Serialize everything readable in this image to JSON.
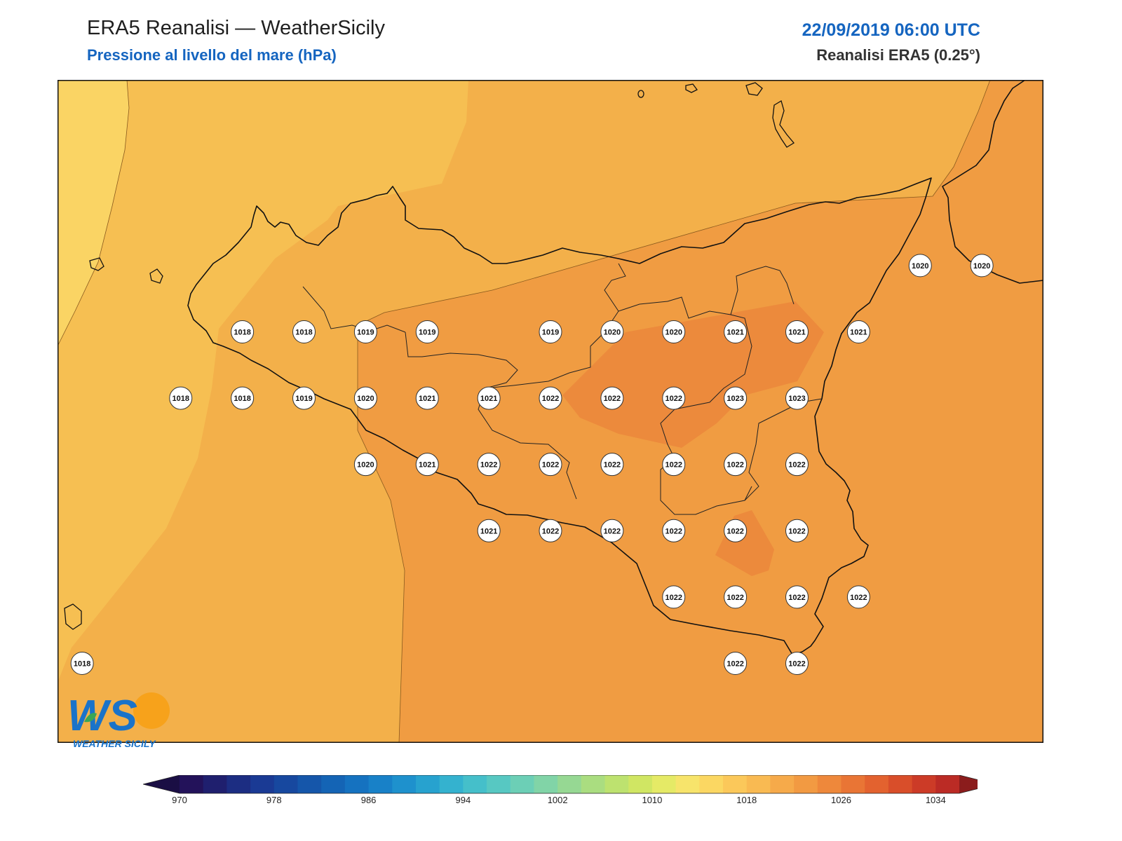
{
  "header": {
    "title": "ERA5 Reanalisi — WeatherSicily",
    "subtitle": "Pressione al livello del mare (hPa)",
    "datetime": "22/09/2019 06:00 UTC",
    "source": "Reanalisi ERA5 (0.25°)"
  },
  "logo": {
    "letters": "WS",
    "brand": "WEATHER SICILY",
    "colors": {
      "primary": "#1a73c9",
      "secondary": "#f7a21b",
      "leaf": "#3aa655"
    }
  },
  "colors": {
    "coast": "#111111",
    "border": "#222222",
    "marker_fill": "#ffffff",
    "marker_stroke": "#333333"
  },
  "colorbar": {
    "tick_labels": [
      "970",
      "978",
      "986",
      "994",
      "1002",
      "1010",
      "1018",
      "1026",
      "1034"
    ],
    "levels_min": 970,
    "levels_max": 1034,
    "step": 2,
    "colors": [
      "#23125a",
      "#1f1f6e",
      "#1c2d82",
      "#1a3a94",
      "#17489f",
      "#1556aa",
      "#1464b5",
      "#1572c0",
      "#1881c8",
      "#1e91cd",
      "#27a2cf",
      "#34b2cf",
      "#45bfca",
      "#57c8c2",
      "#6ccfb6",
      "#81d4a7",
      "#96d893",
      "#aadd80",
      "#bde26f",
      "#d0e663",
      "#e5ea66",
      "#f7e46b",
      "#fbd762",
      "#fbc85a",
      "#f9ba52",
      "#f6aa4a",
      "#f29a42",
      "#ee883b",
      "#e97535",
      "#e3622f",
      "#d94e2a",
      "#cc3b27",
      "#bb2b25"
    ],
    "under_color": "#1a0e44",
    "over_color": "#8b1c1c"
  },
  "chart_data": {
    "type": "heatmap",
    "variable": "Pressione al livello del mare (hPa)",
    "valid_time": "22/09/2019 06:00 UTC",
    "extent": {
      "lon": [
        12.0,
        16.0
      ],
      "lat": [
        36.45,
        38.95
      ]
    },
    "labelled_values": [
      {
        "lon": 15.5,
        "lat": 38.25,
        "value": 1020
      },
      {
        "lon": 15.75,
        "lat": 38.25,
        "value": 1020
      },
      {
        "lon": 12.75,
        "lat": 38.0,
        "value": 1018
      },
      {
        "lon": 13.0,
        "lat": 38.0,
        "value": 1018
      },
      {
        "lon": 13.25,
        "lat": 38.0,
        "value": 1019
      },
      {
        "lon": 13.5,
        "lat": 38.0,
        "value": 1019
      },
      {
        "lon": 14.0,
        "lat": 38.0,
        "value": 1019
      },
      {
        "lon": 14.25,
        "lat": 38.0,
        "value": 1020
      },
      {
        "lon": 14.5,
        "lat": 38.0,
        "value": 1020
      },
      {
        "lon": 14.75,
        "lat": 38.0,
        "value": 1021
      },
      {
        "lon": 15.0,
        "lat": 38.0,
        "value": 1021
      },
      {
        "lon": 15.25,
        "lat": 38.0,
        "value": 1021
      },
      {
        "lon": 12.5,
        "lat": 37.75,
        "value": 1018
      },
      {
        "lon": 12.75,
        "lat": 37.75,
        "value": 1018
      },
      {
        "lon": 13.0,
        "lat": 37.75,
        "value": 1019
      },
      {
        "lon": 13.25,
        "lat": 37.75,
        "value": 1020
      },
      {
        "lon": 13.5,
        "lat": 37.75,
        "value": 1021
      },
      {
        "lon": 13.75,
        "lat": 37.75,
        "value": 1021
      },
      {
        "lon": 14.0,
        "lat": 37.75,
        "value": 1022
      },
      {
        "lon": 14.25,
        "lat": 37.75,
        "value": 1022
      },
      {
        "lon": 14.5,
        "lat": 37.75,
        "value": 1022
      },
      {
        "lon": 14.75,
        "lat": 37.75,
        "value": 1023
      },
      {
        "lon": 15.0,
        "lat": 37.75,
        "value": 1023
      },
      {
        "lon": 13.25,
        "lat": 37.5,
        "value": 1020
      },
      {
        "lon": 13.5,
        "lat": 37.5,
        "value": 1021
      },
      {
        "lon": 13.75,
        "lat": 37.5,
        "value": 1022
      },
      {
        "lon": 14.0,
        "lat": 37.5,
        "value": 1022
      },
      {
        "lon": 14.25,
        "lat": 37.5,
        "value": 1022
      },
      {
        "lon": 14.5,
        "lat": 37.5,
        "value": 1022
      },
      {
        "lon": 14.75,
        "lat": 37.5,
        "value": 1022
      },
      {
        "lon": 15.0,
        "lat": 37.5,
        "value": 1022
      },
      {
        "lon": 13.75,
        "lat": 37.25,
        "value": 1021
      },
      {
        "lon": 14.0,
        "lat": 37.25,
        "value": 1022
      },
      {
        "lon": 14.25,
        "lat": 37.25,
        "value": 1022
      },
      {
        "lon": 14.5,
        "lat": 37.25,
        "value": 1022
      },
      {
        "lon": 14.75,
        "lat": 37.25,
        "value": 1022
      },
      {
        "lon": 15.0,
        "lat": 37.25,
        "value": 1022
      },
      {
        "lon": 14.5,
        "lat": 37.0,
        "value": 1022
      },
      {
        "lon": 14.75,
        "lat": 37.0,
        "value": 1022
      },
      {
        "lon": 15.0,
        "lat": 37.0,
        "value": 1022
      },
      {
        "lon": 15.25,
        "lat": 37.0,
        "value": 1022
      },
      {
        "lon": 12.1,
        "lat": 36.75,
        "value": 1018
      },
      {
        "lon": 14.75,
        "lat": 36.75,
        "value": 1022
      },
      {
        "lon": 15.0,
        "lat": 36.75,
        "value": 1022
      }
    ]
  }
}
